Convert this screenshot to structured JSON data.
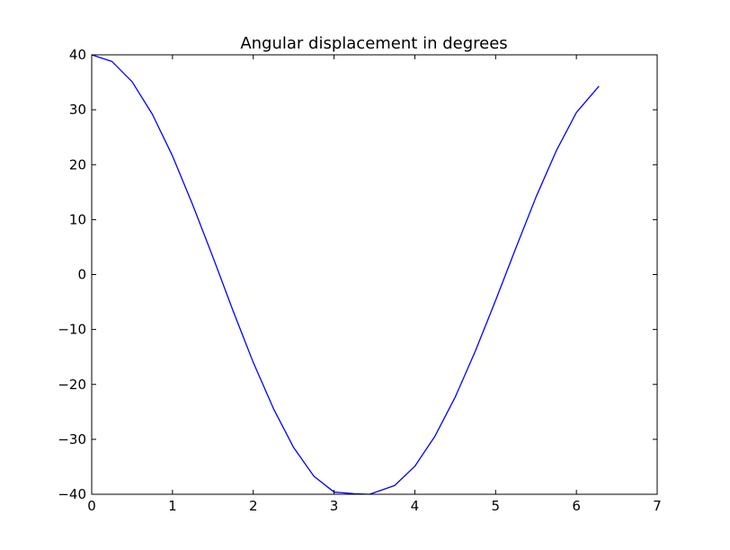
{
  "chart_data": {
    "type": "line",
    "title": "Angular displacement in degrees",
    "xlabel": "",
    "ylabel": "",
    "xlim": [
      0,
      7
    ],
    "ylim": [
      -40,
      40
    ],
    "x_ticks": [
      "0",
      "1",
      "2",
      "3",
      "4",
      "5",
      "6",
      "7"
    ],
    "y_ticks": [
      "40",
      "30",
      "20",
      "10",
      "0",
      "−10",
      "−20",
      "−30",
      "−40"
    ],
    "grid": false,
    "legend": "none",
    "series": [
      {
        "color": "#0000ff",
        "x": [
          0.0,
          0.25,
          0.5,
          0.75,
          1.0,
          1.25,
          1.5,
          1.75,
          2.0,
          2.25,
          2.5,
          2.75,
          3.0,
          3.25,
          3.44,
          3.75,
          4.0,
          4.25,
          4.5,
          4.75,
          5.0,
          5.25,
          5.5,
          5.75,
          6.0,
          6.28
        ],
        "values": [
          40.0,
          38.8,
          35.1,
          29.2,
          21.6,
          12.7,
          3.2,
          -6.6,
          -16.0,
          -24.4,
          -31.5,
          -36.7,
          -39.6,
          -39.9,
          -40.0,
          -38.4,
          -34.9,
          -29.4,
          -22.3,
          -13.9,
          -4.7,
          4.8,
          14.1,
          22.5,
          29.5,
          34.3
        ]
      }
    ]
  }
}
